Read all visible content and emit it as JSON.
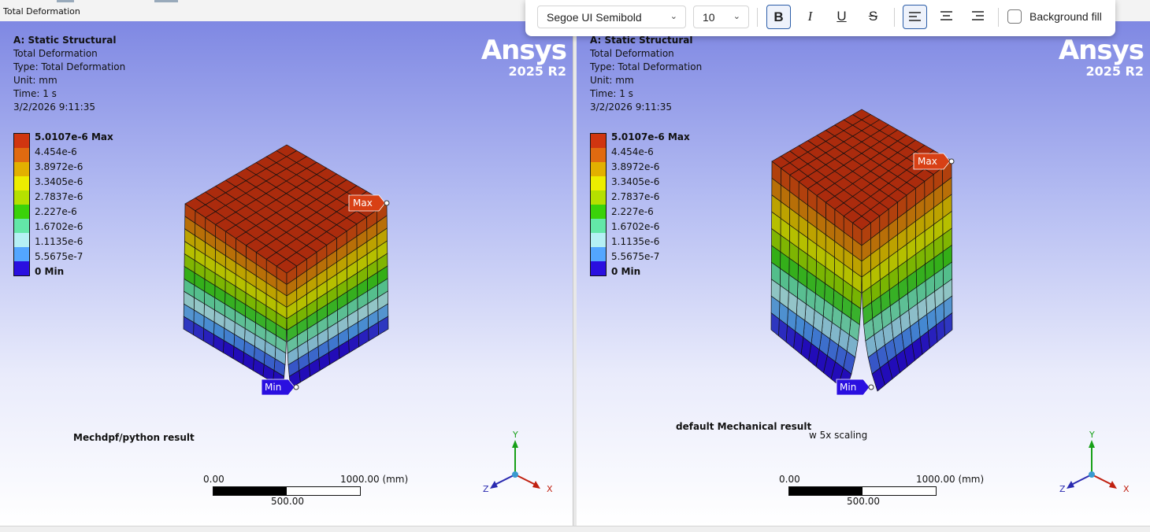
{
  "window": {
    "tab_title": "Total Deformation"
  },
  "colors": {
    "bg_top": "#7f88e3",
    "bg_bottom": "#ffffff",
    "max_tag": "#d84015",
    "min_tag": "#2a0fe0",
    "accent": "#2b5da8"
  },
  "toolbar": {
    "font_name": "Segoe UI Semibold",
    "font_size": "10",
    "bold": "B",
    "italic": "I",
    "underline": "U",
    "strike": "S",
    "background_fill_label": "Background fill",
    "background_fill_checked": false,
    "bold_active": true,
    "align_left_active": true
  },
  "legend": {
    "labels": [
      "5.0107e-6 Max",
      "4.454e-6",
      "3.8972e-6",
      "3.3405e-6",
      "2.7837e-6",
      "2.227e-6",
      "1.6702e-6",
      "1.1135e-6",
      "5.5675e-7",
      "0 Min"
    ],
    "colors": [
      "#d03510",
      "#e06a10",
      "#e2b000",
      "#eded00",
      "#b5e000",
      "#3ad20a",
      "#63e7a8",
      "#b5f0f4",
      "#53a6ff",
      "#2a0fe0"
    ]
  },
  "viewports": [
    {
      "id": "left",
      "info": {
        "title": "A: Static Structural",
        "lines": [
          "Total Deformation",
          "Type: Total Deformation",
          "Unit: mm",
          "Time: 1 s",
          "3/2/2026 9:11:35"
        ]
      },
      "logo": {
        "brand": "Ansys",
        "version": "2025 R2"
      },
      "max_label": "Max",
      "min_label": "Min",
      "caption": "Mechdpf/python result",
      "caption2": "",
      "scale": {
        "left": "0.00",
        "right": "1000.00 (mm)",
        "mid": "500.00"
      },
      "axes": {
        "x": "X",
        "y": "Y",
        "z": "Z"
      }
    },
    {
      "id": "right",
      "info": {
        "title": "A: Static Structural",
        "lines": [
          "Total Deformation",
          "Type: Total Deformation",
          "Unit: mm",
          "Time: 1 s",
          "3/2/2026 9:11:35"
        ]
      },
      "logo": {
        "brand": "Ansys",
        "version": "2025 R2"
      },
      "max_label": "Max",
      "min_label": "Min",
      "caption": "default Mechanical result",
      "caption2": "w 5x scaling",
      "scale": {
        "left": "0.00",
        "right": "1000.00 (mm)",
        "mid": "500.00"
      },
      "axes": {
        "x": "X",
        "y": "Y",
        "z": "Z"
      }
    }
  ]
}
